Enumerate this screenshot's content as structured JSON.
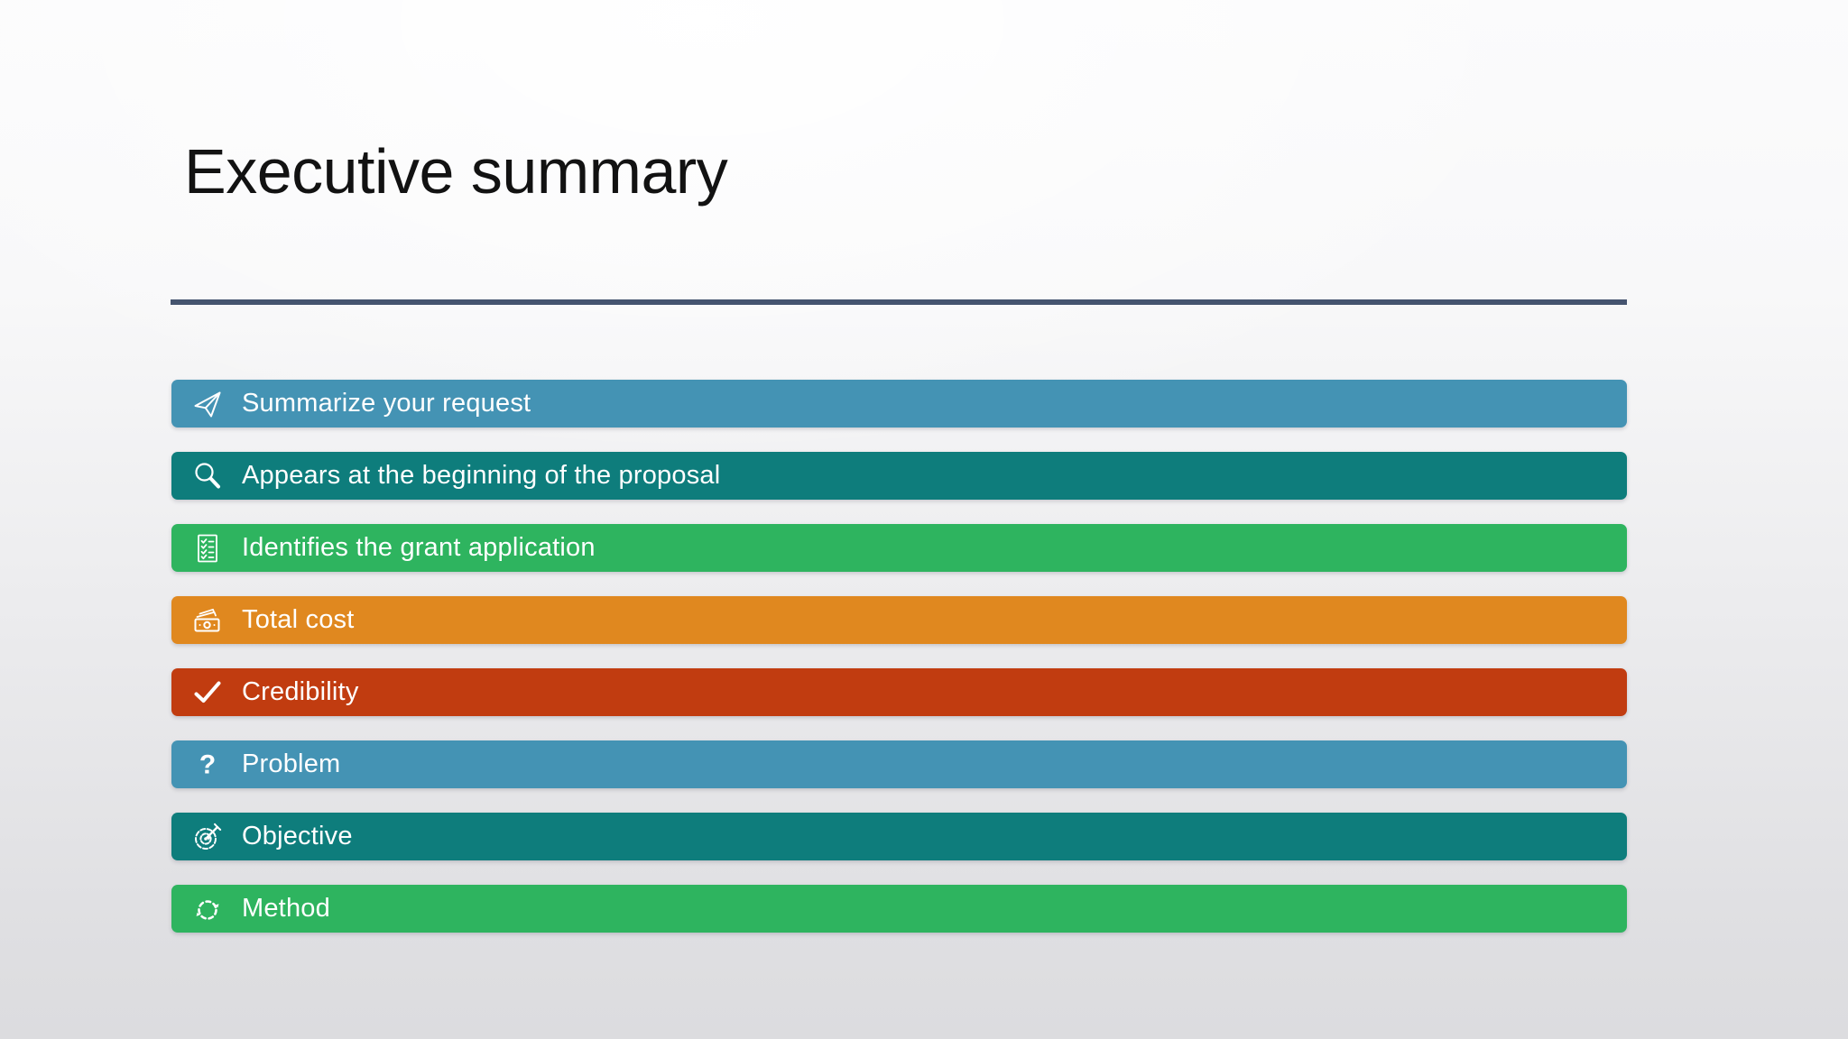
{
  "slide": {
    "title": "Executive summary",
    "divider_color": "#45546f",
    "background_top_color": "#fbfbfc",
    "background_bottom_color": "#dcdcdf",
    "text_color_on_bars": "#ffffff",
    "items": [
      {
        "label": "Summarize your request",
        "color": "#4493b4",
        "icon": "send-icon"
      },
      {
        "label": "Appears at the beginning of the proposal",
        "color": "#0e7d7c",
        "icon": "search-icon"
      },
      {
        "label": "Identifies the grant application",
        "color": "#2eb45f",
        "icon": "checklist-icon"
      },
      {
        "label": "Total cost",
        "color": "#e0881f",
        "icon": "money-icon"
      },
      {
        "label": "Credibility",
        "color": "#c13c10",
        "icon": "checkmark-icon"
      },
      {
        "label": "Problem",
        "color": "#4493b4",
        "icon": "question-icon"
      },
      {
        "label": "Objective",
        "color": "#0e7d7c",
        "icon": "target-icon"
      },
      {
        "label": "Method",
        "color": "#2eb45f",
        "icon": "sync-icon"
      }
    ]
  }
}
